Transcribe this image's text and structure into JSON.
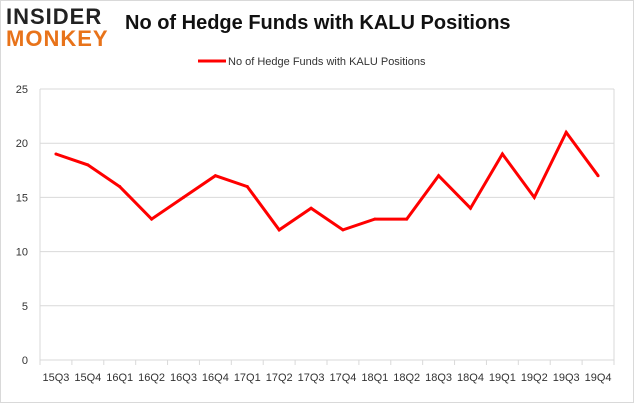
{
  "logo": {
    "line1": "INSIDER",
    "line2": "MONKEY"
  },
  "colors": {
    "series": "#ff0000",
    "grid": "#d9d9d9",
    "logo_accent": "#e8731a"
  },
  "chart_data": {
    "type": "line",
    "title": "No of Hedge Funds with KALU Positions",
    "xlabel": "",
    "ylabel": "",
    "x": [
      "15Q3",
      "15Q4",
      "16Q1",
      "16Q2",
      "16Q3",
      "16Q4",
      "17Q1",
      "17Q2",
      "17Q3",
      "17Q4",
      "18Q1",
      "18Q2",
      "18Q3",
      "18Q4",
      "19Q1",
      "19Q2",
      "19Q3",
      "19Q4"
    ],
    "series": [
      {
        "name": "No of Hedge Funds with KALU Positions",
        "values": [
          19,
          18,
          16,
          13,
          15,
          17,
          16,
          12,
          14,
          12,
          13,
          13,
          17,
          14,
          19,
          15,
          21,
          17
        ]
      }
    ],
    "yticks": [
      "0",
      "5",
      "10",
      "15",
      "20",
      "25"
    ],
    "ylim": [
      0,
      25
    ],
    "grid": true,
    "legend": "top-center"
  }
}
